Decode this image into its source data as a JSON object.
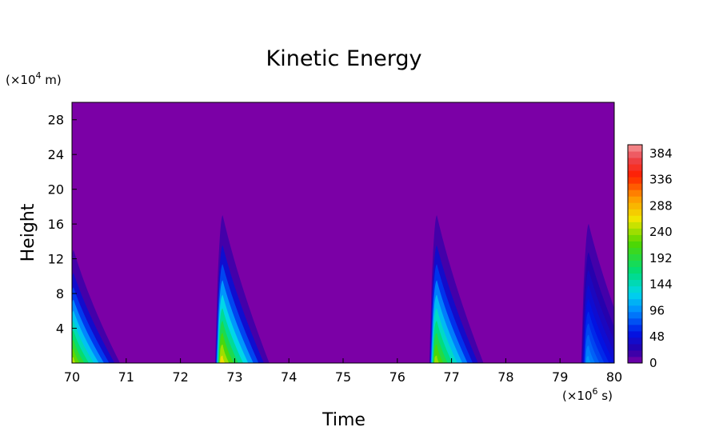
{
  "chart_data": {
    "type": "heatmap",
    "title": "Kinetic Energy",
    "xlabel": "Time",
    "ylabel": "Height",
    "x_unit": {
      "prefix": "(×10",
      "exp": "6",
      "suffix": " s)"
    },
    "y_unit": {
      "prefix": "(×10",
      "exp": "4",
      "suffix": " m)"
    },
    "xlim": [
      70,
      80
    ],
    "ylim": [
      0,
      30
    ],
    "x_ticks": [
      "70",
      "71",
      "72",
      "73",
      "74",
      "75",
      "76",
      "77",
      "78",
      "79",
      "80"
    ],
    "y_ticks": [
      "4",
      "8",
      "12",
      "16",
      "20",
      "24",
      "28"
    ],
    "colorbar": {
      "min": 0,
      "max": 400,
      "ticks": [
        "0",
        "48",
        "96",
        "144",
        "192",
        "240",
        "288",
        "336",
        "384"
      ]
    },
    "background_value": 0,
    "events": [
      {
        "time": 70.0,
        "peak_value": 250,
        "top_height": 13
      },
      {
        "time": 72.75,
        "peak_value": 270,
        "top_height": 17
      },
      {
        "time": 76.7,
        "peak_value": 240,
        "top_height": 17
      },
      {
        "time": 79.5,
        "peak_value": 100,
        "top_height": 16
      }
    ]
  }
}
